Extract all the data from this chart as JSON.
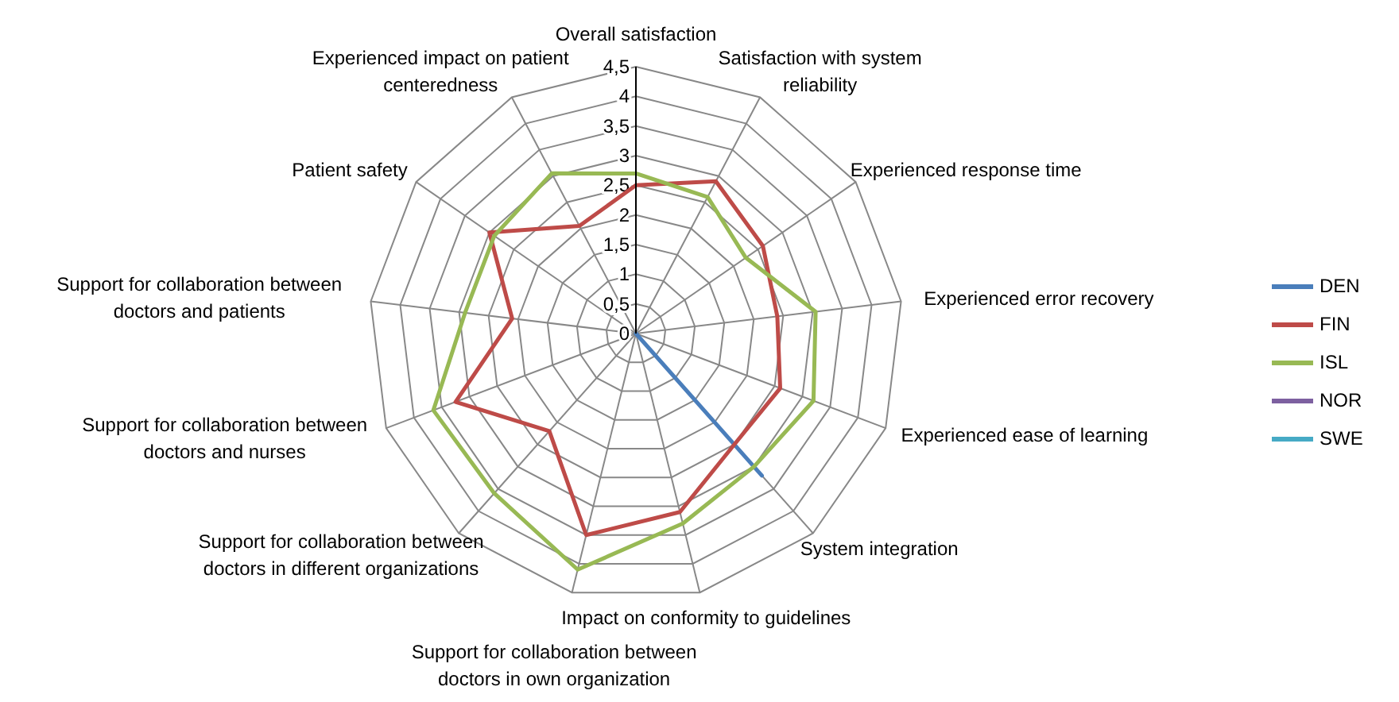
{
  "chart_data": {
    "type": "radar",
    "categories": [
      "Overall satisfaction",
      "Satisfaction with system reliability",
      "Experienced response time",
      "Experienced error recovery",
      "Experienced ease of learning",
      "System integration",
      "Impact on conformity to guidelines",
      "Support for collaboration between doctors in own organization",
      "Support for collaboration between doctors in different organizations",
      "Support for collaboration between doctors and nurses",
      "Support for collaboration between doctors and patients",
      "Patient safety",
      "Experienced impact on patient centeredness"
    ],
    "series": [
      {
        "name": "DEN",
        "color": "#4a7ebb",
        "values": [
          0,
          0,
          0,
          0,
          0,
          3.2,
          0,
          0,
          0,
          0,
          0,
          0,
          0
        ]
      },
      {
        "name": "FIN",
        "color": "#be4b48",
        "values": [
          2.5,
          2.9,
          2.6,
          2.4,
          2.6,
          2.5,
          3.1,
          3.5,
          2.2,
          3.25,
          2.1,
          3.0,
          2.05
        ]
      },
      {
        "name": "ISL",
        "color": "#98b954",
        "values": [
          2.7,
          2.6,
          2.25,
          3.05,
          3.2,
          3.0,
          3.3,
          4.1,
          3.6,
          3.65,
          2.9,
          2.9,
          3.05
        ]
      },
      {
        "name": "NOR",
        "color": "#7d60a0",
        "values": [
          null,
          null,
          null,
          null,
          null,
          null,
          null,
          null,
          null,
          null,
          null,
          null,
          null
        ]
      },
      {
        "name": "SWE",
        "color": "#46aac5",
        "values": [
          null,
          null,
          null,
          null,
          null,
          null,
          null,
          null,
          null,
          null,
          null,
          null,
          null
        ]
      }
    ],
    "ylim": [
      0,
      4.5
    ],
    "yticks": [
      {
        "value": 0,
        "label": "0"
      },
      {
        "value": 0.5,
        "label": "0,5"
      },
      {
        "value": 1,
        "label": "1"
      },
      {
        "value": 1.5,
        "label": "1,5"
      },
      {
        "value": 2,
        "label": "2"
      },
      {
        "value": 2.5,
        "label": "2,5"
      },
      {
        "value": 3,
        "label": "3"
      },
      {
        "value": 3.5,
        "label": "3,5"
      },
      {
        "value": 4,
        "label": "4"
      },
      {
        "value": 4.5,
        "label": "4,5"
      }
    ],
    "grid": true,
    "legend": "right",
    "marker": "none",
    "line_style": "solid"
  }
}
